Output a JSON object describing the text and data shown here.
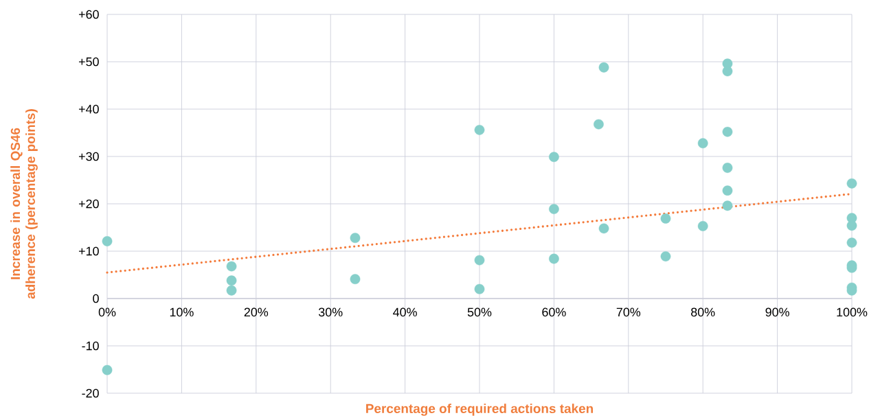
{
  "chart_data": {
    "type": "scatter",
    "xlabel": "Percentage of required actions taken",
    "ylabel": "Increase in overall QS46 adherence (percentage points)",
    "xlim": [
      0,
      100
    ],
    "ylim": [
      -20,
      60
    ],
    "xticks": [
      {
        "value": 0,
        "label": "0%"
      },
      {
        "value": 10,
        "label": "10%"
      },
      {
        "value": 20,
        "label": "20%"
      },
      {
        "value": 30,
        "label": "30%"
      },
      {
        "value": 40,
        "label": "40%"
      },
      {
        "value": 50,
        "label": "50%"
      },
      {
        "value": 60,
        "label": "60%"
      },
      {
        "value": 70,
        "label": "70%"
      },
      {
        "value": 80,
        "label": "80%"
      },
      {
        "value": 90,
        "label": "90%"
      },
      {
        "value": 100,
        "label": "100%"
      }
    ],
    "yticks": [
      {
        "value": -20,
        "label": "-20"
      },
      {
        "value": -10,
        "label": "-10"
      },
      0,
      {
        "value": 10,
        "label": "+10"
      },
      {
        "value": 20,
        "label": "+20"
      },
      {
        "value": 30,
        "label": "+30"
      },
      {
        "value": 40,
        "label": "+40"
      },
      {
        "value": 50,
        "label": "+50"
      },
      {
        "value": 60,
        "label": "+60"
      }
    ],
    "grid": true,
    "series": [
      {
        "color": "#86cfca",
        "marker": "circle",
        "x": [
          0,
          0,
          16.7,
          16.7,
          16.7,
          33.3,
          33.3,
          50,
          50,
          50,
          60,
          60,
          60,
          66.7,
          66,
          66.7,
          75,
          75,
          80,
          80,
          83.3,
          83.3,
          83.3,
          83.3,
          83.3,
          83.3,
          100,
          100,
          100,
          100,
          100,
          100,
          100,
          100
        ],
        "values": [
          12.1,
          -15.1,
          6.8,
          3.8,
          1.7,
          12.8,
          4.1,
          35.6,
          8.1,
          2.0,
          29.9,
          18.9,
          8.4,
          48.8,
          36.8,
          14.8,
          16.9,
          8.9,
          32.8,
          15.3,
          49.6,
          48.0,
          35.2,
          27.6,
          22.8,
          19.6,
          24.3,
          17.0,
          15.4,
          11.8,
          7.0,
          6.5,
          2.3,
          1.7
        ]
      },
      {
        "type": "line",
        "color": "#f47b3b",
        "marker": "none",
        "line_style": "dotted",
        "x": [
          0,
          100
        ],
        "values": [
          5.5,
          22.1
        ]
      }
    ]
  }
}
